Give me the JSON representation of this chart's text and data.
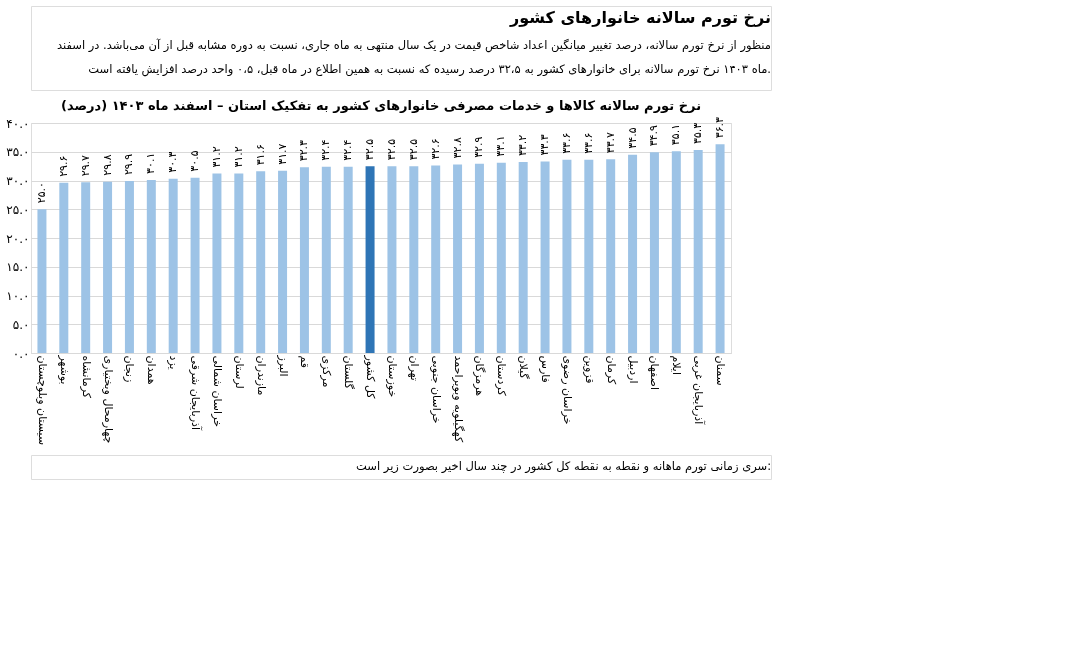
{
  "chart_data": {
    "type": "bar",
    "title": "نرخ تورم سالانه خانوارهای کشور",
    "subtitle": "نرخ تورم سالانه کالاها و خدمات مصرفی خانوارهای کشور به تفکیک استان – اسفند ماه ۱۴۰۳ (درصد)",
    "annotations": [
      "منظور از نرخ تورم سالانه، درصد تغییر میانگین اعداد شاخص قیمت در یک سال منتهی به ماه جاری، نسبت به دوره مشابه قبل از آن می‌باشد. در اسفند",
      "ماه ۱۴۰۳ نرخ تورم سالانه برای خانوارهای کشور به ۳۲،۵ درصد رسیده که نسبت به همین اطلاع در ماه قبل، ۰،۵ واحد درصد افزایش یافته است.",
      "سری زمانی تورم ماهانه و نقطه به نقطه کل کشور در چند سال اخیر بصورت زیر است:"
    ],
    "categories": [
      "سیستان وبلوچستان",
      "بوشهر",
      "کرمانشاه",
      "چهارمحال وبختیاری",
      "زنجان",
      "همدان",
      "یزد",
      "آذربایجان شرقی",
      "خراسان شمالی",
      "لرستان",
      "مازندران",
      "البرز",
      "قم",
      "مرکزی",
      "گلستان",
      "کل کشور",
      "خوزستان",
      "تهران",
      "خراسان جنوبی",
      "کهگیلویه وبویراحمد",
      "هرمزگان",
      "کردستان",
      "گیلان",
      "فارس",
      "خراسان رضوی",
      "قزوین",
      "کرمان",
      "اردبیل",
      "اصفهان",
      "ایلام",
      "آذربایجان غربی",
      "سمنان"
    ],
    "values": [
      25.0,
      29.6,
      29.7,
      29.8,
      29.9,
      30.1,
      30.3,
      30.5,
      31.2,
      31.2,
      31.6,
      31.7,
      32.3,
      32.4,
      32.4,
      32.5,
      32.5,
      32.5,
      32.6,
      32.8,
      32.9,
      33.1,
      33.2,
      33.3,
      33.6,
      33.6,
      33.7,
      34.5,
      34.9,
      35.1,
      35.3,
      36.3
    ],
    "value_labels": [
      "۲۵.۰",
      "۲۹.۶",
      "۲۹.۷",
      "۲۹.۸",
      "۲۹.۹",
      "۳۰.۱",
      "۳۰.۳",
      "۳۰.۵",
      "۳۱.۲",
      "۳۱.۲",
      "۳۱.۶",
      "۳۱.۷",
      "۳۲.۳",
      "۳۲.۴",
      "۳۲.۴",
      "۳۲.۵",
      "۳۲.۵",
      "۳۲.۵",
      "۳۲.۶",
      "۳۲.۸",
      "۳۲.۹",
      "۳۳.۱",
      "۳۳.۲",
      "۳۳.۳",
      "۳۳.۶",
      "۳۳.۶",
      "۳۳.۷",
      "۳۴.۵",
      "۳۴.۹",
      "۳۵.۱",
      "۳۵.۳",
      "۳۶.۳"
    ],
    "colors": [
      "#9dc3e6",
      "#9dc3e6",
      "#9dc3e6",
      "#9dc3e6",
      "#9dc3e6",
      "#9dc3e6",
      "#9dc3e6",
      "#9dc3e6",
      "#9dc3e6",
      "#9dc3e6",
      "#9dc3e6",
      "#9dc3e6",
      "#9dc3e6",
      "#9dc3e6",
      "#9dc3e6",
      "#2e75b6",
      "#9dc3e6",
      "#9dc3e6",
      "#9dc3e6",
      "#9dc3e6",
      "#9dc3e6",
      "#9dc3e6",
      "#9dc3e6",
      "#9dc3e6",
      "#9dc3e6",
      "#9dc3e6",
      "#9dc3e6",
      "#9dc3e6",
      "#9dc3e6",
      "#9dc3e6",
      "#9dc3e6",
      "#9dc3e6"
    ],
    "ylim": [
      0,
      40
    ],
    "yticks": [
      {
        "value": 0,
        "label": "۰.۰"
      },
      {
        "value": 5,
        "label": "۵.۰"
      },
      {
        "value": 10,
        "label": "۱۰.۰"
      },
      {
        "value": 15,
        "label": "۱۵.۰"
      },
      {
        "value": 20,
        "label": "۲۰.۰"
      },
      {
        "value": 25,
        "label": "۲۵.۰"
      },
      {
        "value": 30,
        "label": "۳۰.۰"
      },
      {
        "value": 35,
        "label": "۳۵.۰"
      },
      {
        "value": 40,
        "label": "۴۰.۰"
      }
    ],
    "grid": "y"
  }
}
